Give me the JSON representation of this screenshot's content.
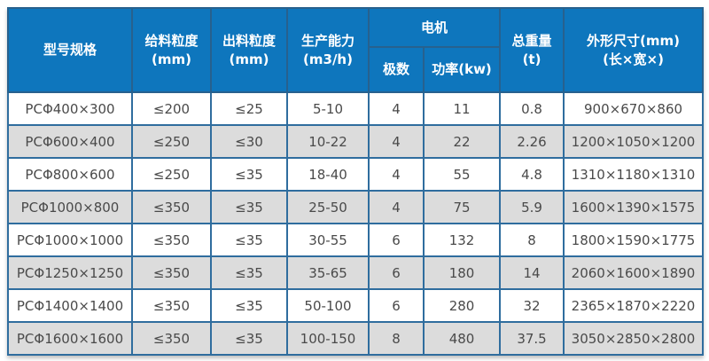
{
  "colors": {
    "header_bg": "#0e76bd",
    "header_text": "#ffffff",
    "border": "#2f6d9e",
    "outer_border": "#27618e",
    "row_alt_bg": "#dcdcdc",
    "cell_text": "#4a4a4a"
  },
  "table": {
    "headers": {
      "model": "型号规格",
      "feed_size": "给料粒度\n(mm)",
      "discharge_size": "出料粒度\n(mm)",
      "capacity": "生产能力\n(m3/h)",
      "motor_group": "电机",
      "motor_poles": "极数",
      "motor_power": "功率(kw)",
      "total_weight": "总重量\n(t)",
      "dimensions": "外形尺寸(mm)\n(长×宽×)"
    },
    "rows": [
      [
        "PCΦ400×300",
        "≤200",
        "≤25",
        "5-10",
        "4",
        "11",
        "0.8",
        "900×670×860"
      ],
      [
        "PCΦ600×400",
        "≤250",
        "≤30",
        "10-22",
        "4",
        "22",
        "2.26",
        "1200×1050×1200"
      ],
      [
        "PCΦ800×600",
        "≤250",
        "≤35",
        "18-40",
        "4",
        "55",
        "4.8",
        "1310×1180×1310"
      ],
      [
        "PCΦ1000×800",
        "≤350",
        "≤35",
        "25-50",
        "4",
        "75",
        "5.9",
        "1600×1390×1575"
      ],
      [
        "PCΦ1000×1000",
        "≤350",
        "≤35",
        "30-55",
        "6",
        "132",
        "8",
        "1800×1590×1775"
      ],
      [
        "PCΦ1250×1250",
        "≤350",
        "≤35",
        "35-65",
        "6",
        "180",
        "14",
        "2060×1600×1890"
      ],
      [
        "PCΦ1400×1400",
        "≤350",
        "≤35",
        "50-100",
        "6",
        "280",
        "32",
        "2365×1870×2220"
      ],
      [
        "PCΦ1600×1600",
        "≤350",
        "≤35",
        "100-150",
        "8",
        "480",
        "37.5",
        "3050×2850×2800"
      ]
    ]
  }
}
